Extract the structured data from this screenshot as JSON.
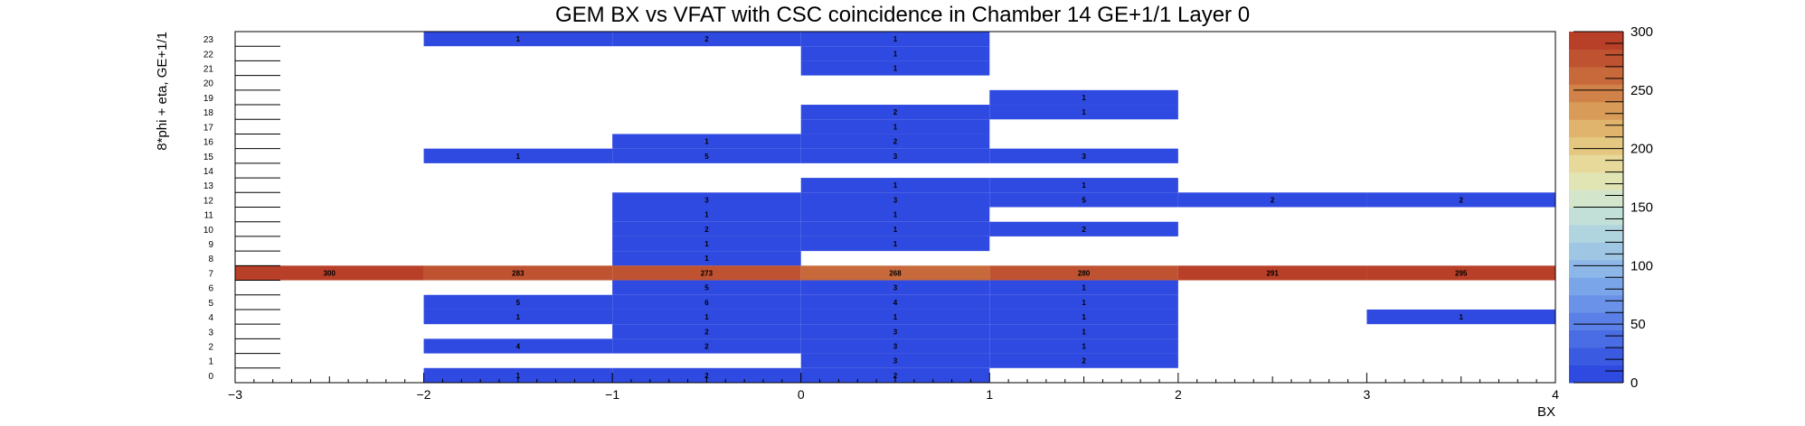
{
  "chart_data": {
    "type": "heatmap",
    "title": "GEM BX vs VFAT with CSC coincidence in Chamber 14 GE+1/1 Layer 0",
    "xlabel": "BX",
    "ylabel": "8*phi + eta, GE+1/1",
    "xlim": [
      -3,
      4
    ],
    "ylim": [
      0,
      24
    ],
    "x_ticks": [
      -3,
      -2,
      -1,
      0,
      1,
      2,
      3,
      4
    ],
    "y_bins": [
      0,
      1,
      2,
      3,
      4,
      5,
      6,
      7,
      8,
      9,
      10,
      11,
      12,
      13,
      14,
      15,
      16,
      17,
      18,
      19,
      20,
      21,
      22,
      23
    ],
    "z_range": [
      0,
      300
    ],
    "z_ticks": [
      0,
      50,
      100,
      150,
      200,
      250,
      300
    ],
    "cells": [
      {
        "x": [
          -2,
          -1
        ],
        "y": 23,
        "value": 1
      },
      {
        "x": [
          -1,
          0
        ],
        "y": 23,
        "value": 2
      },
      {
        "x": [
          0,
          1
        ],
        "y": 23,
        "value": 1
      },
      {
        "x": [
          0,
          1
        ],
        "y": 22,
        "value": 1
      },
      {
        "x": [
          0,
          1
        ],
        "y": 21,
        "value": 1
      },
      {
        "x": [
          1,
          2
        ],
        "y": 19,
        "value": 1
      },
      {
        "x": [
          0,
          1
        ],
        "y": 18,
        "value": 2
      },
      {
        "x": [
          1,
          2
        ],
        "y": 18,
        "value": 1
      },
      {
        "x": [
          0,
          1
        ],
        "y": 17,
        "value": 1
      },
      {
        "x": [
          -1,
          0
        ],
        "y": 16,
        "value": 1
      },
      {
        "x": [
          0,
          1
        ],
        "y": 16,
        "value": 2
      },
      {
        "x": [
          -2,
          -1
        ],
        "y": 15,
        "value": 1
      },
      {
        "x": [
          -1,
          0
        ],
        "y": 15,
        "value": 5
      },
      {
        "x": [
          0,
          1
        ],
        "y": 15,
        "value": 3
      },
      {
        "x": [
          1,
          2
        ],
        "y": 15,
        "value": 3
      },
      {
        "x": [
          0,
          1
        ],
        "y": 13,
        "value": 1
      },
      {
        "x": [
          1,
          2
        ],
        "y": 13,
        "value": 1
      },
      {
        "x": [
          -1,
          0
        ],
        "y": 12,
        "value": 3
      },
      {
        "x": [
          0,
          1
        ],
        "y": 12,
        "value": 3
      },
      {
        "x": [
          1,
          2
        ],
        "y": 12,
        "value": 5
      },
      {
        "x": [
          2,
          3
        ],
        "y": 12,
        "value": 2
      },
      {
        "x": [
          3,
          4
        ],
        "y": 12,
        "value": 2
      },
      {
        "x": [
          -1,
          0
        ],
        "y": 11,
        "value": 1
      },
      {
        "x": [
          0,
          1
        ],
        "y": 11,
        "value": 1
      },
      {
        "x": [
          -1,
          0
        ],
        "y": 10,
        "value": 2
      },
      {
        "x": [
          0,
          1
        ],
        "y": 10,
        "value": 1
      },
      {
        "x": [
          1,
          2
        ],
        "y": 10,
        "value": 2
      },
      {
        "x": [
          -1,
          0
        ],
        "y": 9,
        "value": 1
      },
      {
        "x": [
          0,
          1
        ],
        "y": 9,
        "value": 1
      },
      {
        "x": [
          -1,
          0
        ],
        "y": 8,
        "value": 1
      },
      {
        "x": [
          -3,
          -2
        ],
        "y": 7,
        "value": 300
      },
      {
        "x": [
          -2,
          -1
        ],
        "y": 7,
        "value": 283
      },
      {
        "x": [
          -1,
          0
        ],
        "y": 7,
        "value": 273
      },
      {
        "x": [
          0,
          1
        ],
        "y": 7,
        "value": 268
      },
      {
        "x": [
          1,
          2
        ],
        "y": 7,
        "value": 280
      },
      {
        "x": [
          2,
          3
        ],
        "y": 7,
        "value": 291
      },
      {
        "x": [
          3,
          4
        ],
        "y": 7,
        "value": 295
      },
      {
        "x": [
          -1,
          0
        ],
        "y": 6,
        "value": 5
      },
      {
        "x": [
          0,
          1
        ],
        "y": 6,
        "value": 3
      },
      {
        "x": [
          1,
          2
        ],
        "y": 6,
        "value": 1
      },
      {
        "x": [
          -2,
          -1
        ],
        "y": 5,
        "value": 5
      },
      {
        "x": [
          -1,
          0
        ],
        "y": 5,
        "value": 6
      },
      {
        "x": [
          0,
          1
        ],
        "y": 5,
        "value": 4
      },
      {
        "x": [
          1,
          2
        ],
        "y": 5,
        "value": 1
      },
      {
        "x": [
          -2,
          -1
        ],
        "y": 4,
        "value": 1
      },
      {
        "x": [
          -1,
          0
        ],
        "y": 4,
        "value": 1
      },
      {
        "x": [
          0,
          1
        ],
        "y": 4,
        "value": 1
      },
      {
        "x": [
          1,
          2
        ],
        "y": 4,
        "value": 1
      },
      {
        "x": [
          3,
          4
        ],
        "y": 4,
        "value": 1
      },
      {
        "x": [
          -1,
          0
        ],
        "y": 3,
        "value": 2
      },
      {
        "x": [
          0,
          1
        ],
        "y": 3,
        "value": 3
      },
      {
        "x": [
          1,
          2
        ],
        "y": 3,
        "value": 1
      },
      {
        "x": [
          -2,
          -1
        ],
        "y": 2,
        "value": 4
      },
      {
        "x": [
          -1,
          0
        ],
        "y": 2,
        "value": 2
      },
      {
        "x": [
          0,
          1
        ],
        "y": 2,
        "value": 3
      },
      {
        "x": [
          1,
          2
        ],
        "y": 2,
        "value": 1
      },
      {
        "x": [
          0,
          1
        ],
        "y": 1,
        "value": 3
      },
      {
        "x": [
          1,
          2
        ],
        "y": 1,
        "value": 2
      },
      {
        "x": [
          -2,
          -1
        ],
        "y": 0,
        "value": 1
      },
      {
        "x": [
          -1,
          0
        ],
        "y": 0,
        "value": 2
      },
      {
        "x": [
          0,
          1
        ],
        "y": 0,
        "value": 2
      }
    ],
    "grid": false,
    "colors": {
      "low": "#2f4ae0",
      "palette": [
        "#2f4ae0",
        "#3a5ae2",
        "#4a6ce4",
        "#5a7fe6",
        "#6a92e8",
        "#7ba5e9",
        "#8db7e8",
        "#9fc7e4",
        "#b0d5df",
        "#c2e0d8",
        "#d3e6cc",
        "#e1e4b3",
        "#e6d999",
        "#e4c881",
        "#e0b46c",
        "#d99c58",
        "#d18248",
        "#c8693b",
        "#bf5230",
        "#b83f28"
      ]
    }
  }
}
